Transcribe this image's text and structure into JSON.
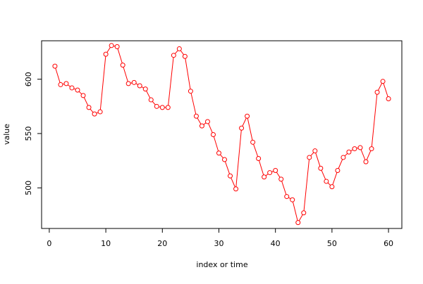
{
  "chart_data": {
    "type": "line",
    "xlabel": "index or time",
    "ylabel": "value",
    "color": "#ff0000",
    "marker": "circle",
    "x": [
      1,
      2,
      3,
      4,
      5,
      6,
      7,
      8,
      9,
      10,
      11,
      12,
      13,
      14,
      15,
      16,
      17,
      18,
      19,
      20,
      21,
      22,
      23,
      24,
      25,
      26,
      27,
      28,
      29,
      30,
      31,
      32,
      33,
      34,
      35,
      36,
      37,
      38,
      39,
      40,
      41,
      42,
      43,
      44,
      45,
      46,
      47,
      48,
      49,
      50,
      51,
      52,
      53,
      54,
      55,
      56,
      57,
      58,
      59,
      60
    ],
    "values": [
      612,
      595,
      596,
      592,
      590,
      585,
      574,
      568,
      570,
      623,
      631,
      630,
      613,
      596,
      597,
      594,
      591,
      581,
      575,
      574,
      574,
      622,
      628,
      621,
      589,
      566,
      557,
      561,
      549,
      532,
      526,
      511,
      499,
      555,
      566,
      542,
      527,
      510,
      514,
      516,
      508,
      492,
      489,
      468,
      477,
      528,
      534,
      518,
      506,
      501,
      516,
      528,
      533,
      536,
      537,
      524,
      536,
      588,
      598,
      582
    ],
    "xlim": [
      -1.36,
      62.36
    ],
    "ylim": [
      462.6,
      635.4
    ],
    "xticks": [
      0,
      10,
      20,
      30,
      40,
      50,
      60
    ],
    "yticks": [
      500,
      550,
      600
    ]
  }
}
